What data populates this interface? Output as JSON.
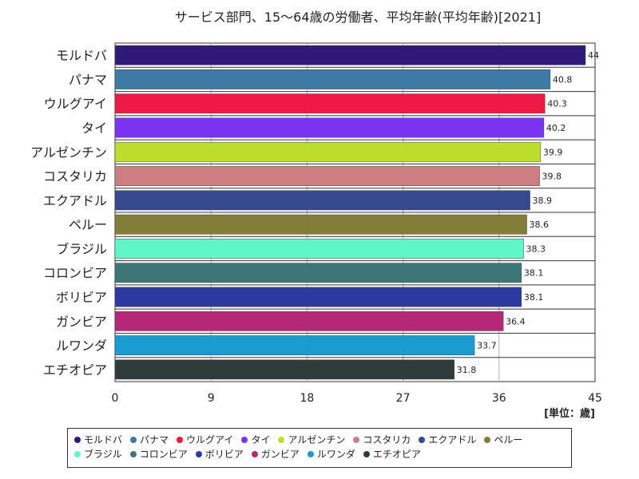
{
  "chart_data": {
    "type": "bar",
    "orientation": "horizontal",
    "title": "サービス部門、15～64歳の労働者、平均年齢(平均年齢)[2021]",
    "unit_label": "[単位：歳]",
    "xlim": [
      0,
      45
    ],
    "x_ticks": [
      "0",
      "9",
      "18",
      "27",
      "36",
      "45"
    ],
    "grid": true,
    "legend_position": "bottom",
    "categories": [
      "モルドバ",
      "パナマ",
      "ウルグアイ",
      "タイ",
      "アルゼンチン",
      "コスタリカ",
      "エクアドル",
      "ペルー",
      "ブラジル",
      "コロンビア",
      "ボリビア",
      "ガンビア",
      "ルワンダ",
      "エチオピア"
    ],
    "values": [
      44.1,
      40.8,
      40.3,
      40.2,
      39.9,
      39.8,
      38.9,
      38.6,
      38.3,
      38.1,
      38.1,
      36.4,
      33.7,
      31.8
    ],
    "value_labels": [
      "44",
      "40.8",
      "40.3",
      "40.2",
      "39.9",
      "39.8",
      "38.9",
      "38.6",
      "38.3",
      "38.1",
      "38.1",
      "36.4",
      "33.7",
      "31.8"
    ],
    "colors": [
      "#2f1a7a",
      "#3d7aa6",
      "#ee1a45",
      "#7a33f0",
      "#bcdd2c",
      "#cc7e80",
      "#36488e",
      "#837d3a",
      "#5ef7c5",
      "#3c7676",
      "#2b39a0",
      "#b52878",
      "#1b9cd0",
      "#2e3d3b"
    ]
  }
}
